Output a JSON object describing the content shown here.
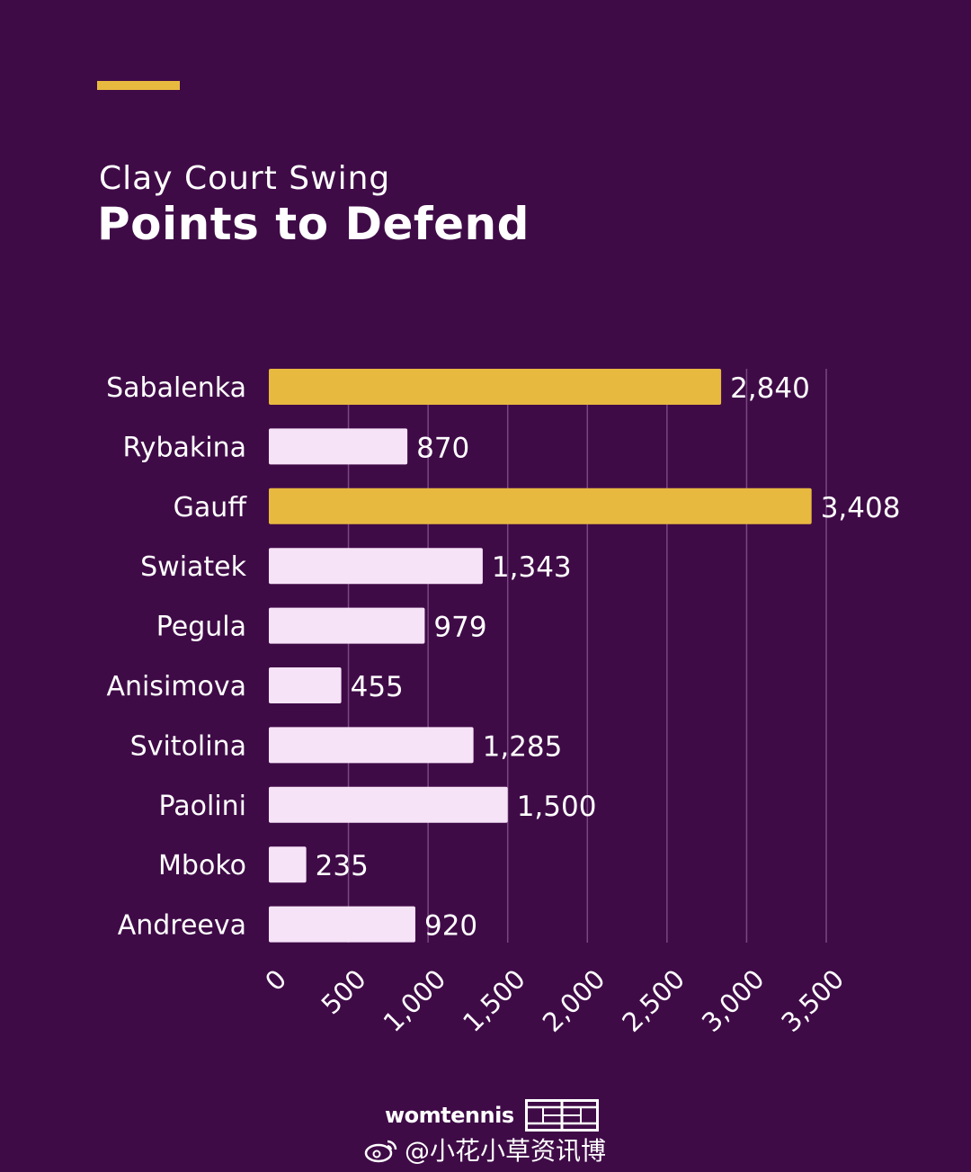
{
  "header": {
    "subtitle": "Clay Court Swing",
    "title": "Points to Defend"
  },
  "chart_data": {
    "type": "bar",
    "orientation": "horizontal",
    "title": "Points to Defend",
    "subtitle": "Clay Court Swing",
    "categories": [
      "Sabalenka",
      "Rybakina",
      "Gauff",
      "Swiatek",
      "Pegula",
      "Anisimova",
      "Svitolina",
      "Paolini",
      "Mboko",
      "Andreeva"
    ],
    "values": [
      2840,
      870,
      3408,
      1343,
      979,
      455,
      1285,
      1500,
      235,
      920
    ],
    "value_labels": [
      "2,840",
      "870",
      "3,408",
      "1,343",
      "979",
      "455",
      "1,285",
      "1,500",
      "235",
      "920"
    ],
    "highlight": [
      true,
      false,
      true,
      false,
      false,
      false,
      false,
      false,
      false,
      false
    ],
    "xlim": [
      0,
      3500
    ],
    "xticks": [
      0,
      500,
      1000,
      1500,
      2000,
      2500,
      3000,
      3500
    ],
    "xtick_labels": [
      "0",
      "500",
      "1,000",
      "1,500",
      "2,000",
      "2,500",
      "3,000",
      "3,500"
    ],
    "grid": true,
    "xlabel": "",
    "ylabel": ""
  },
  "colors": {
    "background": "#3f0b47",
    "highlight_bar": "#e8b93f",
    "bar": "#f7e3f7",
    "grid": "#7a4782",
    "text": "#ffffff"
  },
  "footer": {
    "brand": "womtennis",
    "watermark": "@小花小草资讯博"
  }
}
